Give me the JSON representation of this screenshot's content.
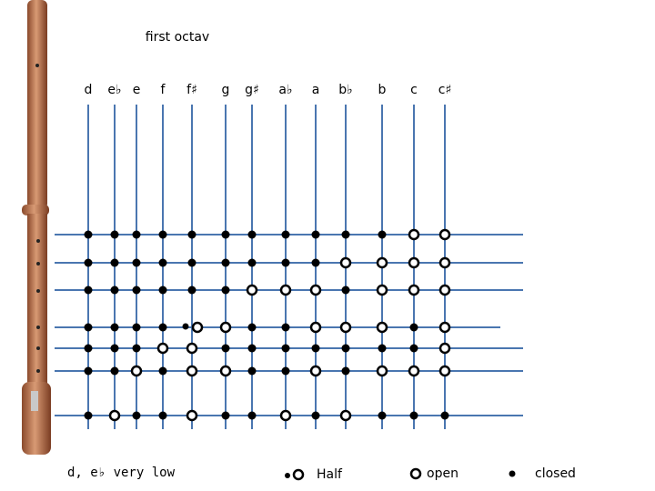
{
  "title": "first octav",
  "notes": [
    "d",
    "e♭",
    "e",
    "f",
    "f♯",
    "g",
    "g♯",
    "a♭",
    "a",
    "b♭",
    "b",
    "c",
    "c♯"
  ],
  "holes": [
    [
      "closed",
      "closed",
      "closed",
      "closed",
      "closed",
      "closed",
      "closed",
      "closed",
      "closed",
      "closed",
      "closed",
      "open",
      "open"
    ],
    [
      "closed",
      "closed",
      "closed",
      "closed",
      "closed",
      "closed",
      "closed",
      "closed",
      "closed",
      "open",
      "open",
      "open",
      "open"
    ],
    [
      "closed",
      "closed",
      "closed",
      "closed",
      "closed",
      "closed",
      "open",
      "open",
      "open",
      "closed",
      "open",
      "open",
      "open"
    ],
    [
      "closed",
      "closed",
      "closed",
      "closed",
      "half",
      "open",
      "closed",
      "closed",
      "open",
      "open",
      "open",
      "closed",
      "open"
    ],
    [
      "closed",
      "closed",
      "closed",
      "open",
      "open",
      "closed",
      "closed",
      "closed",
      "closed",
      "closed",
      "closed",
      "closed",
      "open"
    ],
    [
      "closed",
      "closed",
      "open",
      "closed",
      "open",
      "open",
      "closed",
      "closed",
      "open",
      "closed",
      "open",
      "open",
      "open"
    ],
    [
      "closed",
      "open",
      "closed",
      "closed",
      "open",
      "closed",
      "closed",
      "open",
      "closed",
      "open",
      "closed",
      "closed",
      "closed"
    ]
  ],
  "legend": {
    "note": "d, e♭ very low",
    "half": "Half",
    "open": "open",
    "closed": "closed"
  }
}
